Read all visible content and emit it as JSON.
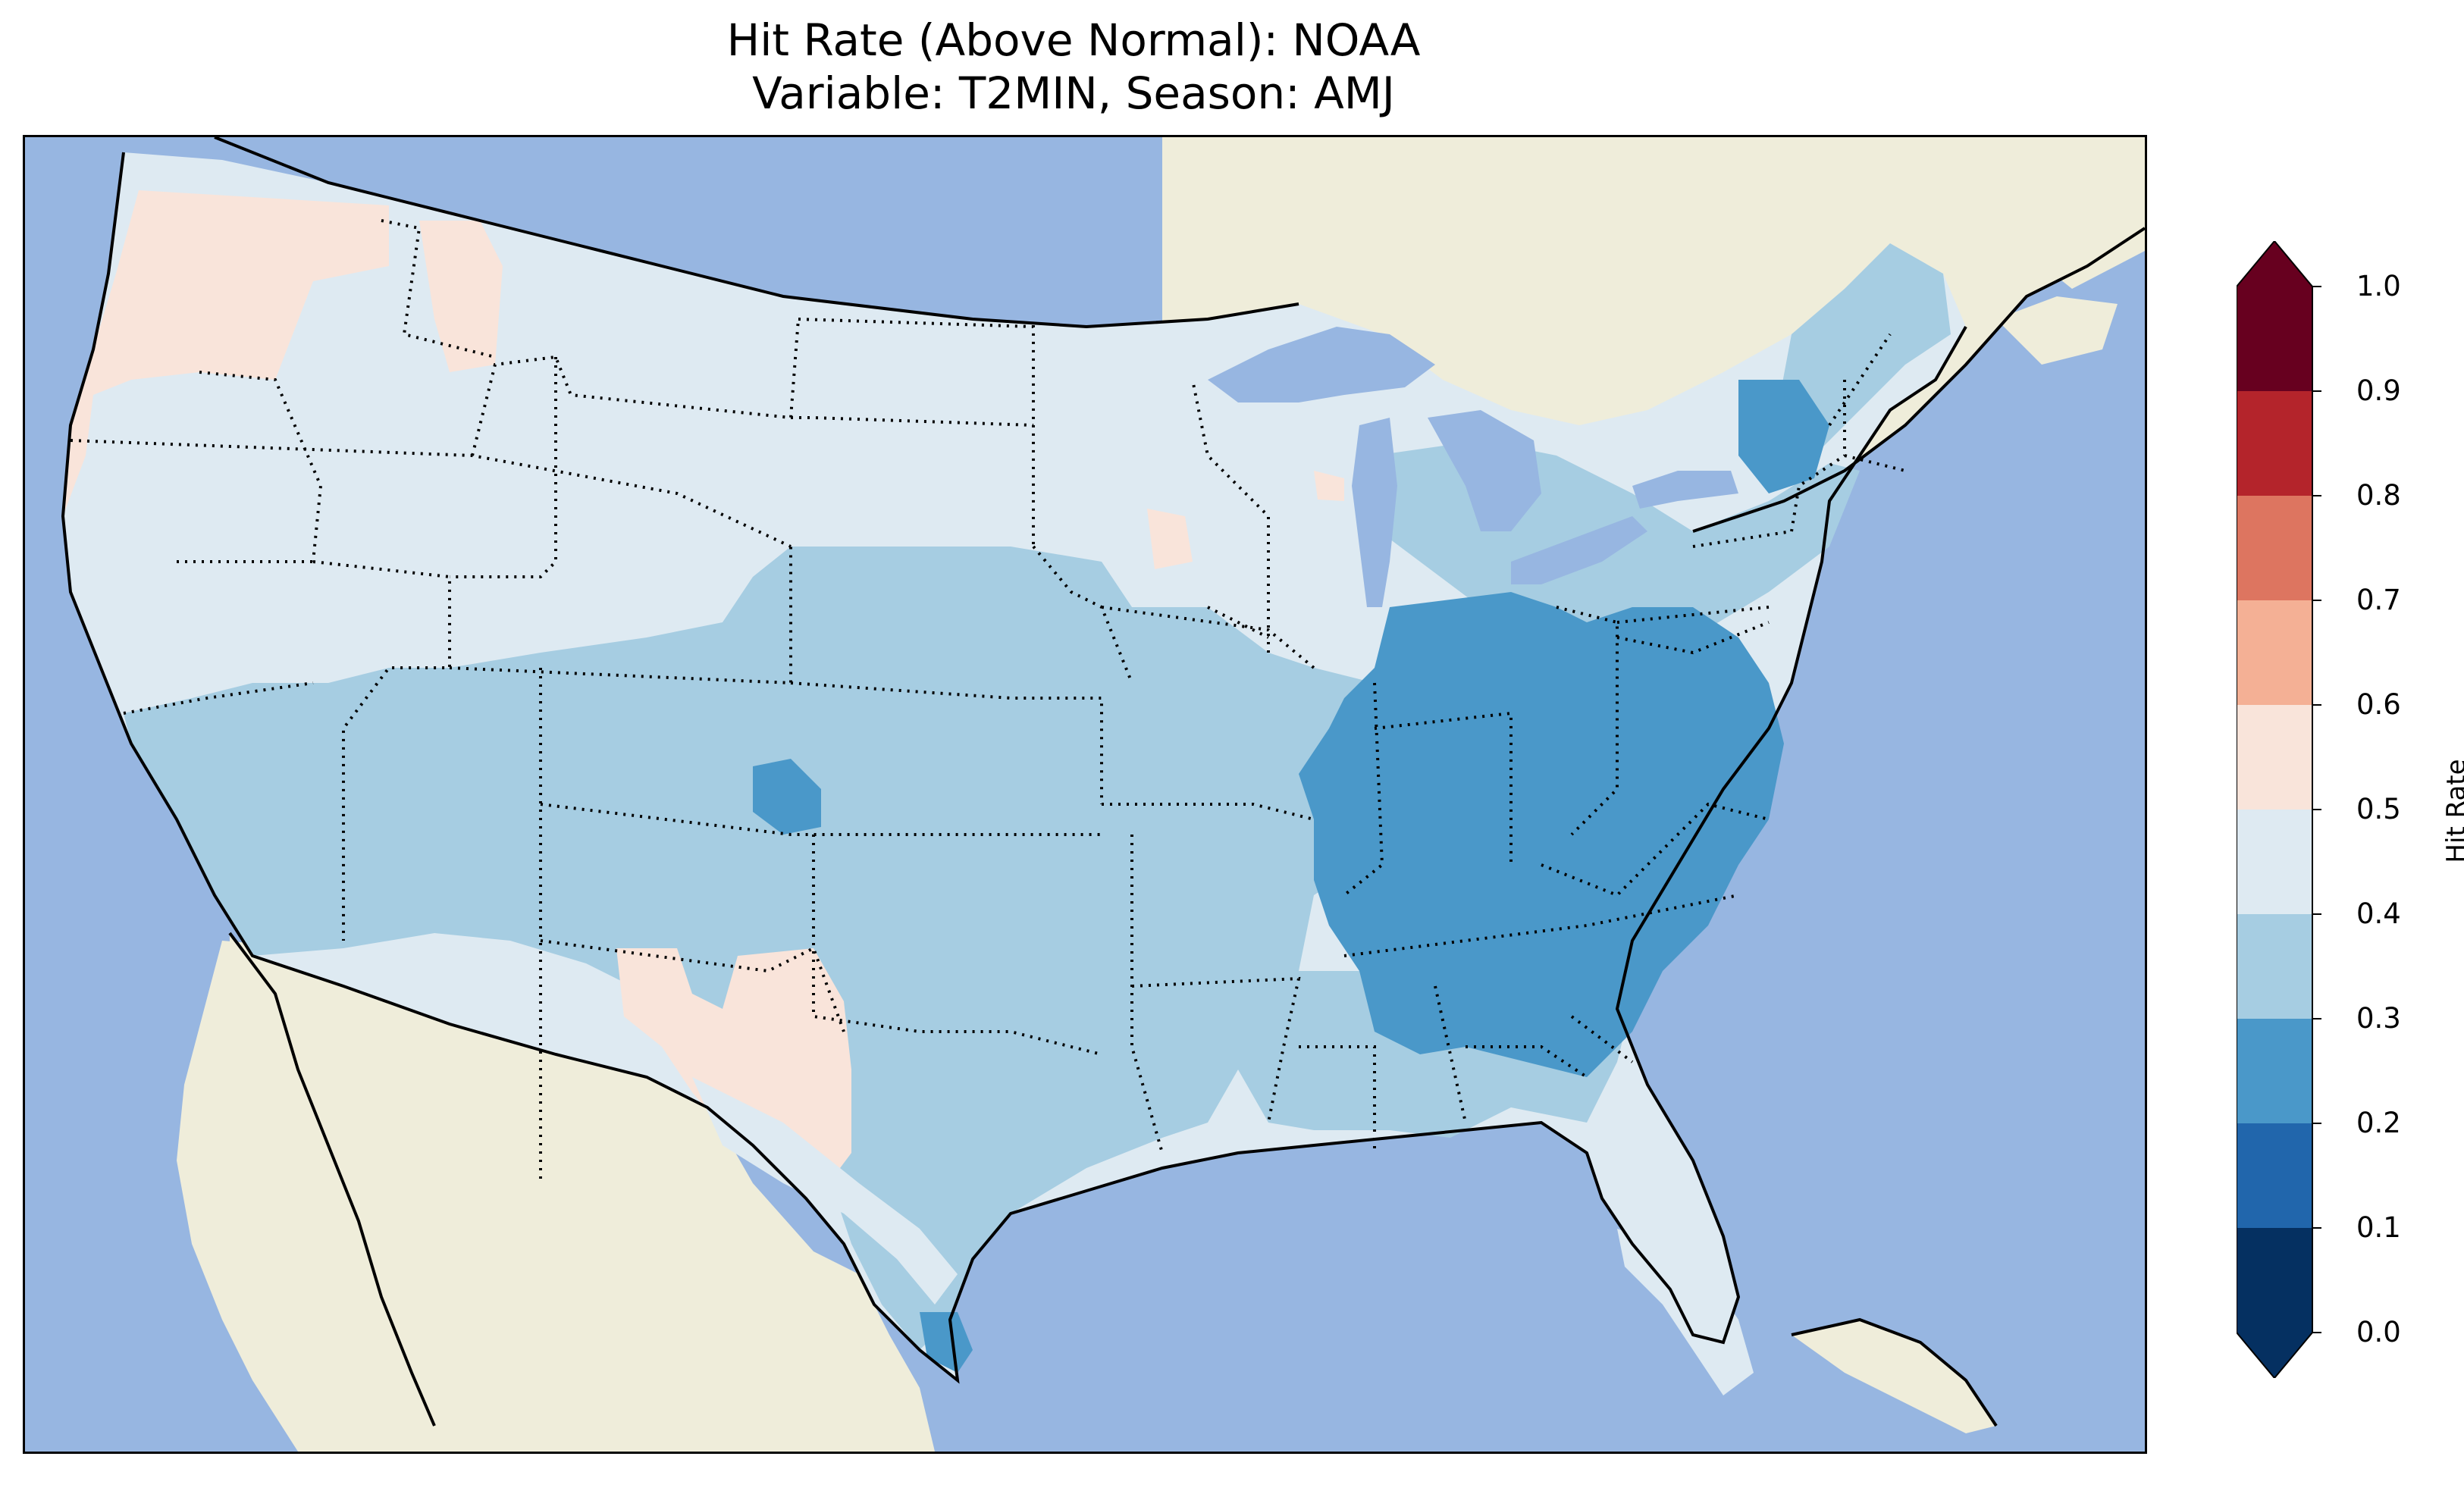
{
  "figure": {
    "title_line1": "Hit Rate (Above Normal): NOAA",
    "title_line2": "Variable: T2MIN, Season: AMJ"
  },
  "colors": {
    "ocean": "#97b6e1",
    "land": "#efedda",
    "lakes": "#97b6e1",
    "class_0_1": "#053061",
    "class_1_2": "#2166ac",
    "class_2_3": "#4a98c9",
    "class_3_4": "#a6cde2",
    "class_4_5": "#deeaf2",
    "class_5_6": "#f9e4da",
    "class_6_7": "#f4b095",
    "class_7_8": "#dd7560",
    "class_8_9": "#b4242b",
    "class_9_10": "#67001f"
  },
  "colorbar": {
    "label": "Hit Rate",
    "ticks": [
      "0.0",
      "0.1",
      "0.2",
      "0.3",
      "0.4",
      "0.5",
      "0.6",
      "0.7",
      "0.8",
      "0.9",
      "1.0"
    ],
    "extend": "both"
  },
  "regions": [
    {
      "name": "pacific-northwest",
      "hit_rate_class": "0.5-0.6"
    },
    {
      "name": "central-new-mexico",
      "hit_rate_class": "0.5-0.6"
    },
    {
      "name": "west-texas",
      "hit_rate_class": "0.5-0.6"
    },
    {
      "name": "northern-rockies-great-plains",
      "hit_rate_class": "0.4-0.5"
    },
    {
      "name": "central-plains",
      "hit_rate_class": "0.3-0.4"
    },
    {
      "name": "ohio-valley-southeast",
      "hit_rate_class": "0.2-0.3"
    },
    {
      "name": "florida",
      "hit_rate_class": "0.4-0.5"
    }
  ]
}
